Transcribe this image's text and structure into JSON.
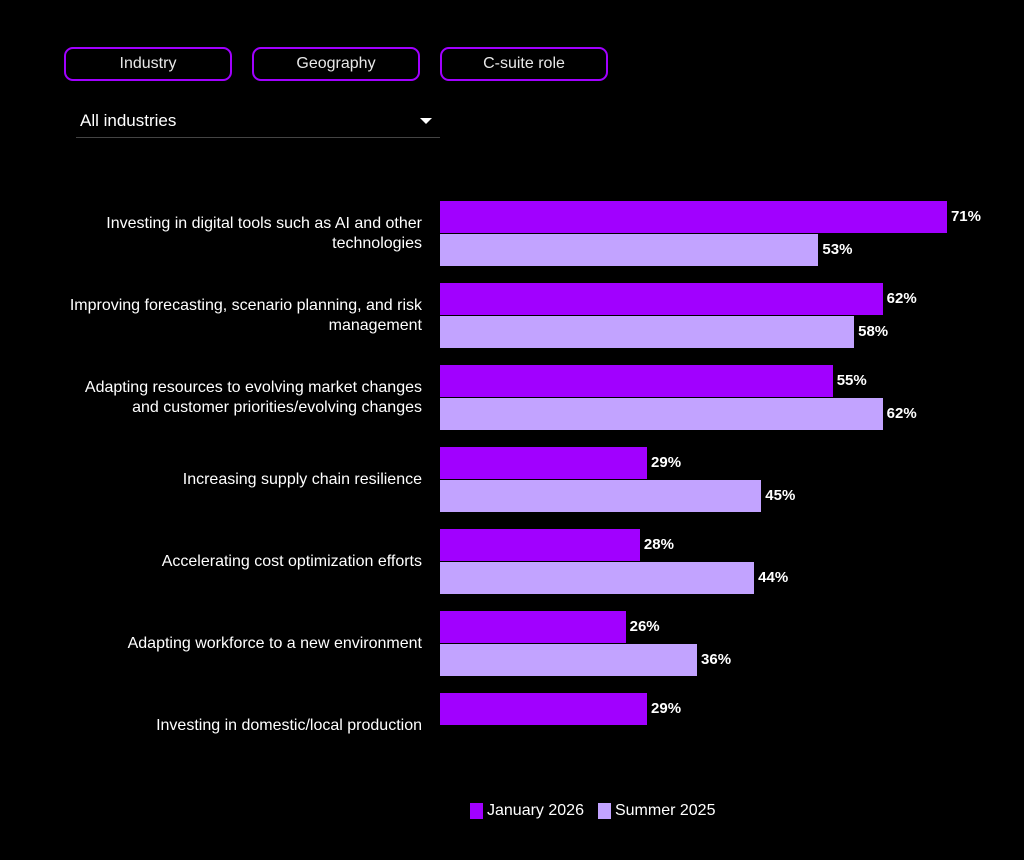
{
  "filters": {
    "tabs": [
      "Industry",
      "Geography",
      "C-suite role"
    ],
    "dropdown_value": "All industries"
  },
  "colors": {
    "january": "#a100ff",
    "summer": "#c2a3ff",
    "tab_border": "#a100ff"
  },
  "chart_data": {
    "type": "bar",
    "orientation": "horizontal",
    "categories": [
      "Investing in digital tools such as AI and other technologies",
      "Improving forecasting, scenario planning, and risk management",
      "Adapting resources to evolving market changes and customer priorities/evolving changes",
      "Increasing supply chain resilience",
      "Accelerating cost optimization efforts",
      "Adapting workforce to a new environment",
      "Investing in domestic/local production"
    ],
    "series": [
      {
        "name": "January 2026",
        "values": [
          71,
          62,
          55,
          29,
          28,
          26,
          29
        ]
      },
      {
        "name": "Summer 2025",
        "values": [
          53,
          58,
          62,
          45,
          44,
          36,
          null
        ]
      }
    ],
    "value_suffix": "%",
    "legend": "bottom",
    "grid": false
  }
}
